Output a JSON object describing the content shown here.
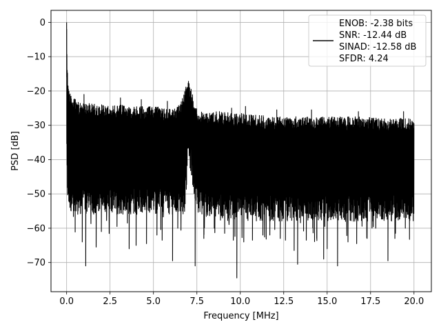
{
  "chart_data": {
    "type": "line",
    "title": "",
    "xlabel": "Frequency [MHz]",
    "ylabel": "PSD [dB]",
    "xlim": [
      -0.9,
      21.0
    ],
    "ylim": [
      -78.5,
      3.5
    ],
    "xticks": [
      0.0,
      2.5,
      5.0,
      7.5,
      10.0,
      12.5,
      15.0,
      17.5,
      20.0
    ],
    "xtick_labels": [
      "0.0",
      "2.5",
      "5.0",
      "7.5",
      "10.0",
      "12.5",
      "15.0",
      "17.5",
      "20.0"
    ],
    "yticks": [
      0,
      -10,
      -20,
      -30,
      -40,
      -50,
      -60,
      -70
    ],
    "ytick_labels": [
      "0",
      "−10",
      "−20",
      "−30",
      "−40",
      "−50",
      "−60",
      "−70"
    ],
    "grid": true,
    "legend_position": "top-right",
    "line_color": "#000000",
    "series": [
      {
        "legend_lines": [
          "ENOB: -2.38 bits",
          "SNR: -12.44 dB",
          "SINAD: -12.58 dB",
          "SFDR: 4.24"
        ],
        "envelope": {
          "x": [
            0.0,
            0.02,
            0.05,
            0.1,
            0.2,
            0.3,
            0.5,
            1.0,
            2.0,
            3.0,
            4.0,
            5.0,
            6.0,
            6.5,
            6.8,
            7.0,
            7.2,
            7.4,
            7.6,
            8.0,
            9.0,
            10.0,
            11.0,
            12.0,
            13.0,
            14.0,
            15.0,
            16.0,
            17.0,
            18.0,
            19.0,
            20.0
          ],
          "top": [
            0.0,
            -8.0,
            -14.0,
            -18.0,
            -20.5,
            -21.5,
            -22.5,
            -23.5,
            -24.0,
            -24.0,
            -24.5,
            -24.5,
            -25.0,
            -24.0,
            -20.0,
            -16.5,
            -20.0,
            -24.0,
            -26.0,
            -26.0,
            -26.0,
            -26.5,
            -27.0,
            -27.5,
            -27.5,
            -27.5,
            -27.5,
            -27.5,
            -27.5,
            -28.0,
            -28.0,
            -28.0
          ],
          "bottom": [
            -40.0,
            -48.0,
            -52.0,
            -53.0,
            -55.0,
            -55.0,
            -56.0,
            -56.0,
            -56.0,
            -56.0,
            -56.0,
            -56.0,
            -56.0,
            -56.0,
            -56.0,
            -40.0,
            -45.0,
            -54.0,
            -56.0,
            -56.0,
            -58.0,
            -58.0,
            -58.0,
            -58.0,
            -58.0,
            -58.0,
            -58.0,
            -58.0,
            -58.0,
            -58.0,
            -58.0,
            -58.0
          ]
        },
        "dips": [
          {
            "x": 1.1,
            "y": -71.0
          },
          {
            "x": 0.9,
            "y": -64.0
          },
          {
            "x": 1.7,
            "y": -65.5
          },
          {
            "x": 2.0,
            "y": -61.0
          },
          {
            "x": 2.9,
            "y": -59.5
          },
          {
            "x": 3.5,
            "y": -58.5
          },
          {
            "x": 3.6,
            "y": -66.0
          },
          {
            "x": 4.0,
            "y": -65.0
          },
          {
            "x": 4.6,
            "y": -64.5
          },
          {
            "x": 5.2,
            "y": -62.0
          },
          {
            "x": 5.5,
            "y": -63.5
          },
          {
            "x": 6.1,
            "y": -69.5
          },
          {
            "x": 6.4,
            "y": -60.0
          },
          {
            "x": 7.4,
            "y": -71.0
          },
          {
            "x": 7.9,
            "y": -63.0
          },
          {
            "x": 8.5,
            "y": -60.0
          },
          {
            "x": 9.1,
            "y": -61.5
          },
          {
            "x": 9.6,
            "y": -63.5
          },
          {
            "x": 9.8,
            "y": -74.5
          },
          {
            "x": 10.2,
            "y": -64.0
          },
          {
            "x": 10.7,
            "y": -63.5
          },
          {
            "x": 11.3,
            "y": -62.0
          },
          {
            "x": 11.7,
            "y": -62.0
          },
          {
            "x": 12.3,
            "y": -63.0
          },
          {
            "x": 12.6,
            "y": -63.5
          },
          {
            "x": 13.1,
            "y": -66.5
          },
          {
            "x": 13.3,
            "y": -70.5
          },
          {
            "x": 13.8,
            "y": -63.5
          },
          {
            "x": 14.4,
            "y": -63.0
          },
          {
            "x": 14.8,
            "y": -69.0
          },
          {
            "x": 15.0,
            "y": -66.0
          },
          {
            "x": 15.6,
            "y": -71.0
          },
          {
            "x": 16.2,
            "y": -64.0
          },
          {
            "x": 16.7,
            "y": -64.5
          },
          {
            "x": 17.3,
            "y": -63.0
          },
          {
            "x": 17.8,
            "y": -60.0
          },
          {
            "x": 18.5,
            "y": -69.5
          },
          {
            "x": 18.9,
            "y": -63.0
          },
          {
            "x": 19.5,
            "y": -60.0
          }
        ],
        "spikes": [
          {
            "x": 1.0,
            "y": -21.0
          },
          {
            "x": 3.1,
            "y": -22.0
          },
          {
            "x": 4.3,
            "y": -22.5
          },
          {
            "x": 5.8,
            "y": -23.0
          },
          {
            "x": 9.5,
            "y": -25.0
          },
          {
            "x": 10.3,
            "y": -24.5
          },
          {
            "x": 12.1,
            "y": -25.5
          },
          {
            "x": 14.1,
            "y": -25.5
          },
          {
            "x": 16.8,
            "y": -26.0
          },
          {
            "x": 19.4,
            "y": -26.0
          }
        ]
      }
    ]
  }
}
